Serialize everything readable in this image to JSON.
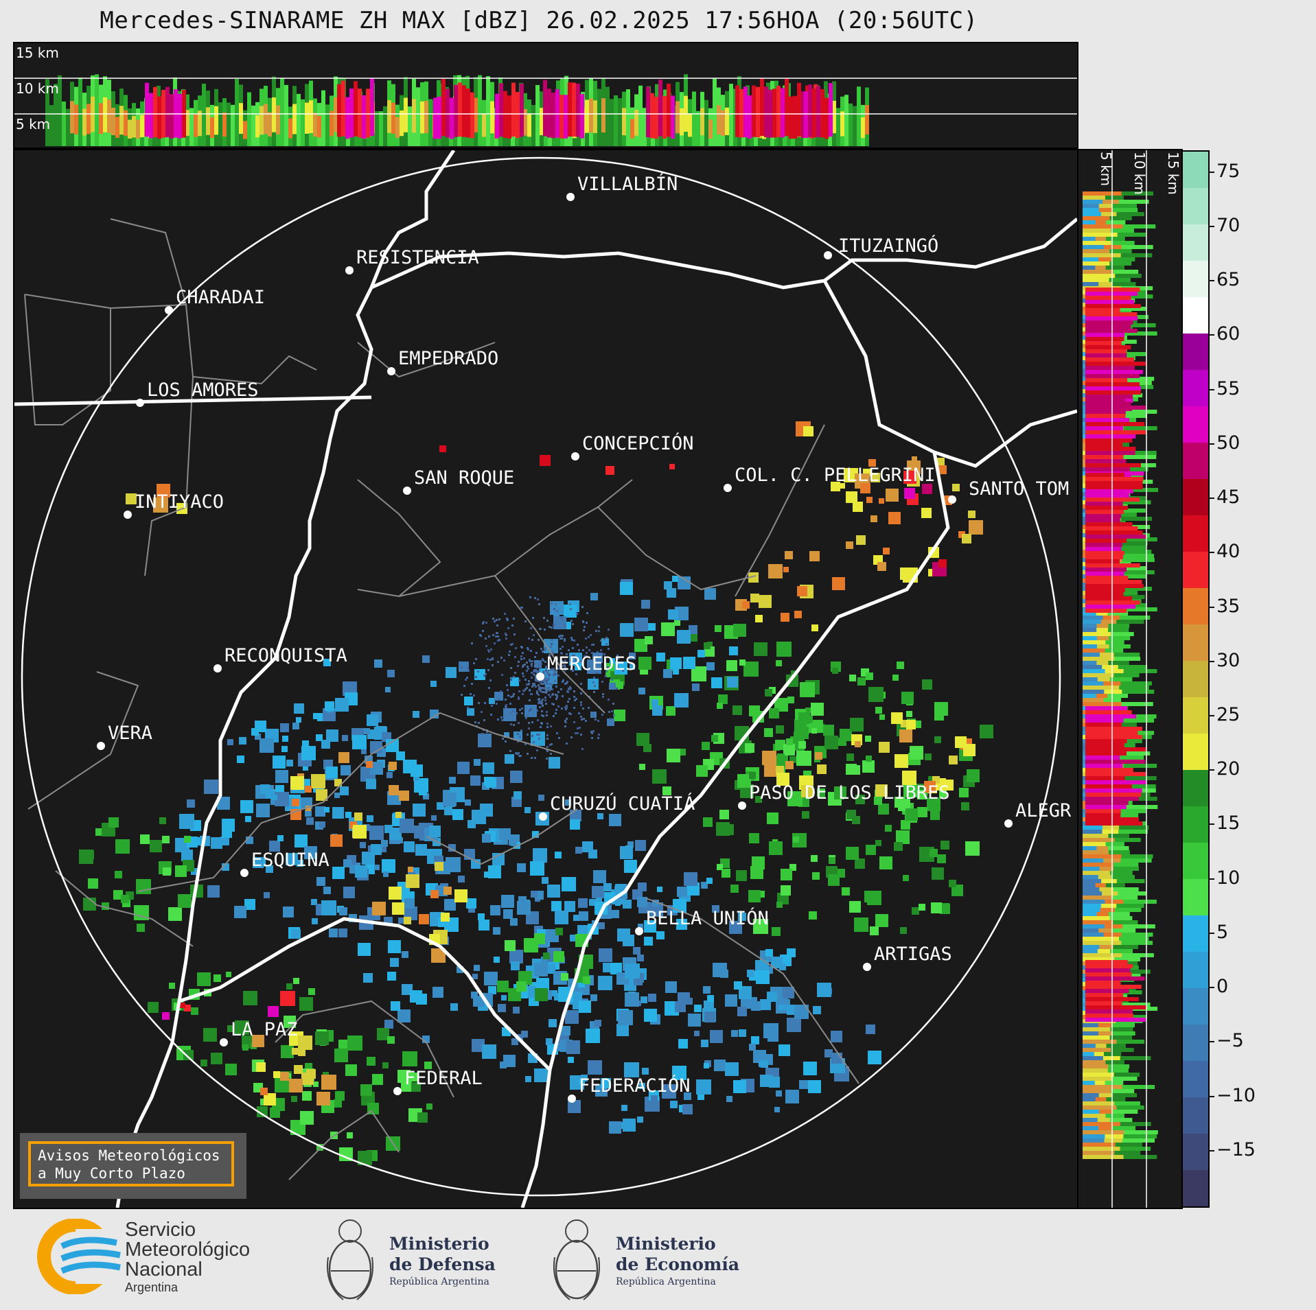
{
  "title": "Mercedes-SINARAME ZH MAX [dBZ] 26.02.2025 17:56HOA (20:56UTC)",
  "height_labels": {
    "top": [
      "15 km",
      "10 km",
      "5 km"
    ],
    "side": [
      "5 km",
      "10 km",
      "15 km"
    ]
  },
  "cities": [
    {
      "name": "VILLALBÍN"
    },
    {
      "name": "RESISTENCIA"
    },
    {
      "name": "ITUZAINGÓ"
    },
    {
      "name": "CHARADAI"
    },
    {
      "name": "EMPEDRADO"
    },
    {
      "name": "LOS AMORES"
    },
    {
      "name": "CONCEPCIÓN"
    },
    {
      "name": "SAN ROQUE"
    },
    {
      "name": "COL. C. PELLEGRINI"
    },
    {
      "name": "SANTO TOM"
    },
    {
      "name": "INTIYACO"
    },
    {
      "name": "MERCEDES"
    },
    {
      "name": "RECONQUISTA"
    },
    {
      "name": "VERA"
    },
    {
      "name": "CURUZÚ CUATIÁ"
    },
    {
      "name": "PASO DE LOS LIBRES"
    },
    {
      "name": "ALEGR"
    },
    {
      "name": "ESQUINA"
    },
    {
      "name": "BELLA UNIÓN"
    },
    {
      "name": "ARTIGAS"
    },
    {
      "name": "LA PAZ"
    },
    {
      "name": "FEDERAL"
    },
    {
      "name": "FEDERACIÓN"
    }
  ],
  "colorbar": {
    "ticks": [
      "75",
      "70",
      "65",
      "60",
      "55",
      "50",
      "45",
      "40",
      "35",
      "30",
      "25",
      "20",
      "15",
      "10",
      "5",
      "0",
      "−5",
      "−10",
      "−15"
    ],
    "range": [
      -20,
      77
    ]
  },
  "notice": {
    "line1": "Avisos Meteorológicos",
    "line2": "a Muy Corto Plazo"
  },
  "footer": {
    "smn": {
      "line1": "Servicio",
      "line2": "Meteorológico",
      "line3": "Nacional",
      "line4": "Argentina"
    },
    "defensa": {
      "line1": "Ministerio",
      "line2": "de Defensa",
      "line3": "República Argentina"
    },
    "economia": {
      "line1": "Ministerio",
      "line2": "de Economía",
      "line3": "República Argentina"
    }
  },
  "colors": {
    "panel_bg": "#1a1a1a",
    "notice_border": "#f5a000",
    "org_text": "#2b3550",
    "smn_orange": "#f5a300",
    "smn_blue": "#2aa4de"
  }
}
